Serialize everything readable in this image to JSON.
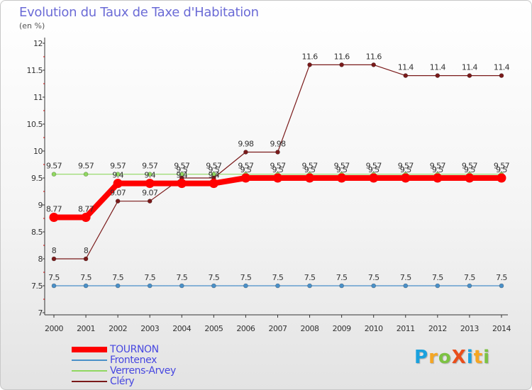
{
  "title": "Evolution du Taux de Taxe d'Habitation",
  "subtitle": "(en %)",
  "logo": {
    "text": "ProXiti",
    "letters": [
      {
        "ch": "P",
        "color": "#1aa1de"
      },
      {
        "ch": "r",
        "color": "#f5a623"
      },
      {
        "ch": "o",
        "color": "#7cc242"
      },
      {
        "ch": "X",
        "color": "#e94e1b"
      },
      {
        "ch": "i",
        "color": "#1aa1de"
      },
      {
        "ch": "t",
        "color": "#f5a623"
      },
      {
        "ch": "i",
        "color": "#7cc242"
      }
    ]
  },
  "chart_data": {
    "type": "line",
    "x": [
      "2000",
      "2001",
      "2002",
      "2003",
      "2004",
      "2005",
      "2006",
      "2007",
      "2008",
      "2009",
      "2010",
      "2011",
      "2012",
      "2013",
      "2014"
    ],
    "ylim": [
      7,
      12
    ],
    "yticks": [
      "7",
      "7.5",
      "8",
      "8.5",
      "9",
      "9.5",
      "10",
      "10.5",
      "11",
      "11.5",
      "12"
    ],
    "grid": false,
    "legend_position": "bottom-left",
    "series": [
      {
        "name": "TOURNON",
        "color": "#ff0000",
        "values": [
          8.77,
          8.77,
          9.4,
          9.4,
          9.4,
          9.4,
          9.5,
          9.5,
          9.5,
          9.5,
          9.5,
          9.5,
          9.5,
          9.5,
          9.5
        ],
        "labels": [
          "8.77",
          "8.77",
          "9.4",
          "9.4",
          "9.4",
          "9.4",
          "9.5",
          "9.5",
          "9.5",
          "9.5",
          "9.5",
          "9.5",
          "9.5",
          "9.5",
          "9.5"
        ]
      },
      {
        "name": "Frontenex",
        "color": "#4a90c8",
        "values": [
          7.5,
          7.5,
          7.5,
          7.5,
          7.5,
          7.5,
          7.5,
          7.5,
          7.5,
          7.5,
          7.5,
          7.5,
          7.5,
          7.5,
          7.5
        ],
        "labels": [
          "7.5",
          "7.5",
          "7.5",
          "7.5",
          "7.5",
          "7.5",
          "7.5",
          "7.5",
          "7.5",
          "7.5",
          "7.5",
          "7.5",
          "7.5",
          "7.5",
          "7.5"
        ]
      },
      {
        "name": "Verrens-Arvey",
        "color": "#90d860",
        "values": [
          9.57,
          9.57,
          9.57,
          9.57,
          9.57,
          9.57,
          9.57,
          9.57,
          9.57,
          9.57,
          9.57,
          9.57,
          9.57,
          9.57,
          9.57
        ],
        "labels": [
          "9.57",
          "9.57",
          "9.57",
          "9.57",
          "9.57",
          "9.57",
          "9.57",
          "9.57",
          "9.57",
          "9.57",
          "9.57",
          "9.57",
          "9.57",
          "9.57",
          "9.57"
        ]
      },
      {
        "name": "Cléry",
        "color": "#7a1a1a",
        "values": [
          8,
          8,
          9.07,
          9.07,
          9.5,
          9.5,
          9.98,
          9.98,
          11.6,
          11.6,
          11.6,
          11.4,
          11.4,
          11.4,
          11.4
        ],
        "labels": [
          "8",
          "8",
          "9.07",
          "9.07",
          "9.5",
          "9.5",
          "9.98",
          "9.98",
          "11.6",
          "11.6",
          "11.6",
          "11.4",
          "11.4",
          "11.4",
          "11.4"
        ]
      }
    ]
  }
}
